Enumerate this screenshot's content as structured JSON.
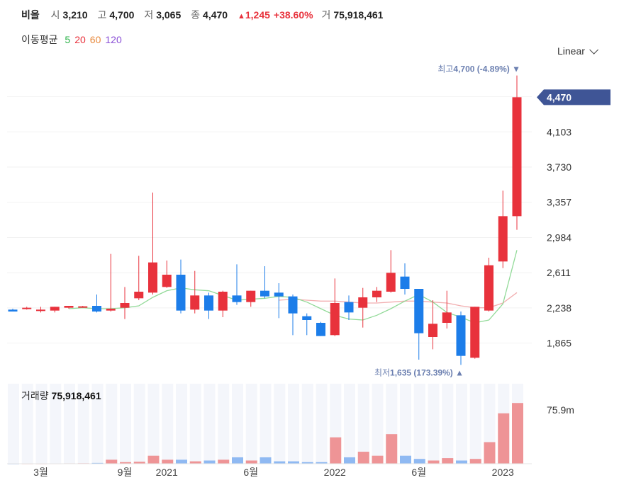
{
  "header": {
    "name": "비올",
    "open_label": "시",
    "open": "3,210",
    "high_label": "고",
    "high": "4,700",
    "low_label": "저",
    "low": "3,065",
    "close_label": "종",
    "close": "4,470",
    "change_arrow": "▲",
    "change": "1,245",
    "change_pct": "+38.60%",
    "volume_label": "거",
    "volume": "75,918,461"
  },
  "ma_legend": {
    "label": "이동평균",
    "items": [
      {
        "text": "5",
        "color": "#2db34a"
      },
      {
        "text": "20",
        "color": "#e8323c"
      },
      {
        "text": "60",
        "color": "#e8893c"
      },
      {
        "text": "120",
        "color": "#8a4fd6"
      }
    ]
  },
  "scale_selector": {
    "value": "Linear"
  },
  "price_panel": {
    "current_price_tag": "4,470",
    "max_label": "최고",
    "max_value": "4,700 (-4.89%)",
    "min_label": "최저",
    "min_value": "1,635 (173.39%)"
  },
  "volume_panel": {
    "label": "거래량",
    "value": "75,918,461",
    "axis_label": "75.9m"
  },
  "chart_data": {
    "type": "candlestick",
    "y_ticks": [
      1865,
      2238,
      2611,
      2984,
      3357,
      3730,
      4103
    ],
    "y_tick_labels": [
      "1,865",
      "2,238",
      "2,611",
      "2,984",
      "3,357",
      "3,730",
      "4,103"
    ],
    "ylim": [
      1600,
      4750
    ],
    "x_tick_labels": [
      {
        "label": "3월",
        "index": 2
      },
      {
        "label": "9월",
        "index": 8
      },
      {
        "label": "2021",
        "index": 11
      },
      {
        "label": "6월",
        "index": 17
      },
      {
        "label": "2022",
        "index": 23
      },
      {
        "label": "6월",
        "index": 29
      },
      {
        "label": "2023",
        "index": 35
      }
    ],
    "candles": [
      {
        "o": 2220,
        "h": 2230,
        "l": 2200,
        "c": 2200
      },
      {
        "o": 2230,
        "h": 2250,
        "l": 2220,
        "c": 2240
      },
      {
        "o": 2220,
        "h": 2250,
        "l": 2190,
        "c": 2220
      },
      {
        "o": 2210,
        "h": 2250,
        "l": 2190,
        "c": 2250
      },
      {
        "o": 2240,
        "h": 2260,
        "l": 2230,
        "c": 2260
      },
      {
        "o": 2250,
        "h": 2260,
        "l": 2240,
        "c": 2255
      },
      {
        "o": 2260,
        "h": 2380,
        "l": 2190,
        "c": 2200
      },
      {
        "o": 2210,
        "h": 2810,
        "l": 2200,
        "c": 2230
      },
      {
        "o": 2240,
        "h": 2460,
        "l": 2120,
        "c": 2290
      },
      {
        "o": 2340,
        "h": 2790,
        "l": 2320,
        "c": 2410
      },
      {
        "o": 2400,
        "h": 3460,
        "l": 2380,
        "c": 2720
      },
      {
        "o": 2460,
        "h": 2740,
        "l": 2450,
        "c": 2590
      },
      {
        "o": 2590,
        "h": 2750,
        "l": 2180,
        "c": 2210
      },
      {
        "o": 2220,
        "h": 2630,
        "l": 2180,
        "c": 2370
      },
      {
        "o": 2370,
        "h": 2400,
        "l": 2120,
        "c": 2210
      },
      {
        "o": 2210,
        "h": 2420,
        "l": 2140,
        "c": 2410
      },
      {
        "o": 2370,
        "h": 2700,
        "l": 2270,
        "c": 2300
      },
      {
        "o": 2300,
        "h": 2420,
        "l": 2250,
        "c": 2420
      },
      {
        "o": 2420,
        "h": 2680,
        "l": 2340,
        "c": 2360
      },
      {
        "o": 2400,
        "h": 2500,
        "l": 2130,
        "c": 2360
      },
      {
        "o": 2360,
        "h": 2380,
        "l": 1950,
        "c": 2180
      },
      {
        "o": 2150,
        "h": 2180,
        "l": 1950,
        "c": 2110
      },
      {
        "o": 2080,
        "h": 2090,
        "l": 1940,
        "c": 1940
      },
      {
        "o": 1950,
        "h": 2550,
        "l": 1940,
        "c": 2290
      },
      {
        "o": 2300,
        "h": 2370,
        "l": 2110,
        "c": 2190
      },
      {
        "o": 2240,
        "h": 2450,
        "l": 2030,
        "c": 2350
      },
      {
        "o": 2350,
        "h": 2460,
        "l": 2300,
        "c": 2420
      },
      {
        "o": 2410,
        "h": 2850,
        "l": 2400,
        "c": 2610
      },
      {
        "o": 2570,
        "h": 2710,
        "l": 2380,
        "c": 2440
      },
      {
        "o": 2440,
        "h": 2440,
        "l": 1690,
        "c": 1970
      },
      {
        "o": 1930,
        "h": 2320,
        "l": 1800,
        "c": 2070
      },
      {
        "o": 2080,
        "h": 2420,
        "l": 2020,
        "c": 2190
      },
      {
        "o": 2160,
        "h": 2200,
        "l": 1635,
        "c": 1730
      },
      {
        "o": 1710,
        "h": 2250,
        "l": 1700,
        "c": 2250
      },
      {
        "o": 2210,
        "h": 2770,
        "l": 2200,
        "c": 2690
      },
      {
        "o": 2730,
        "h": 3480,
        "l": 2660,
        "c": 3210
      },
      {
        "o": 3210,
        "h": 4700,
        "l": 3065,
        "c": 4470
      }
    ],
    "ma5": [
      null,
      null,
      null,
      null,
      2230,
      2240,
      2230,
      2230,
      2240,
      2260,
      2350,
      2420,
      2450,
      2430,
      2420,
      2370,
      2320,
      2330,
      2340,
      2360,
      2350,
      2300,
      2230,
      2160,
      2120,
      2110,
      2160,
      2230,
      2310,
      2380,
      2300,
      2190,
      2140,
      2080,
      2110,
      2280,
      2850
    ],
    "ma20": [
      null,
      null,
      null,
      null,
      null,
      null,
      null,
      null,
      null,
      null,
      null,
      null,
      null,
      null,
      null,
      null,
      null,
      null,
      null,
      2320,
      2330,
      2320,
      2310,
      2310,
      2300,
      2290,
      2290,
      2300,
      2310,
      2310,
      2300,
      2290,
      2260,
      2240,
      2240,
      2290,
      2400
    ],
    "volume_values": [
      0.2,
      0.3,
      0.3,
      0.4,
      0.5,
      0.6,
      1.0,
      5.0,
      2.0,
      2.5,
      10.0,
      5.0,
      5.0,
      3.0,
      4.0,
      5.0,
      8.0,
      4.0,
      8.0,
      3.0,
      3.0,
      2.0,
      2.0,
      33.0,
      8.0,
      15.0,
      10.0,
      37.0,
      10.0,
      6.0,
      4.0,
      7.0,
      4.0,
      6.0,
      27.0,
      63.0,
      75.9
    ],
    "volume_max": 100
  }
}
